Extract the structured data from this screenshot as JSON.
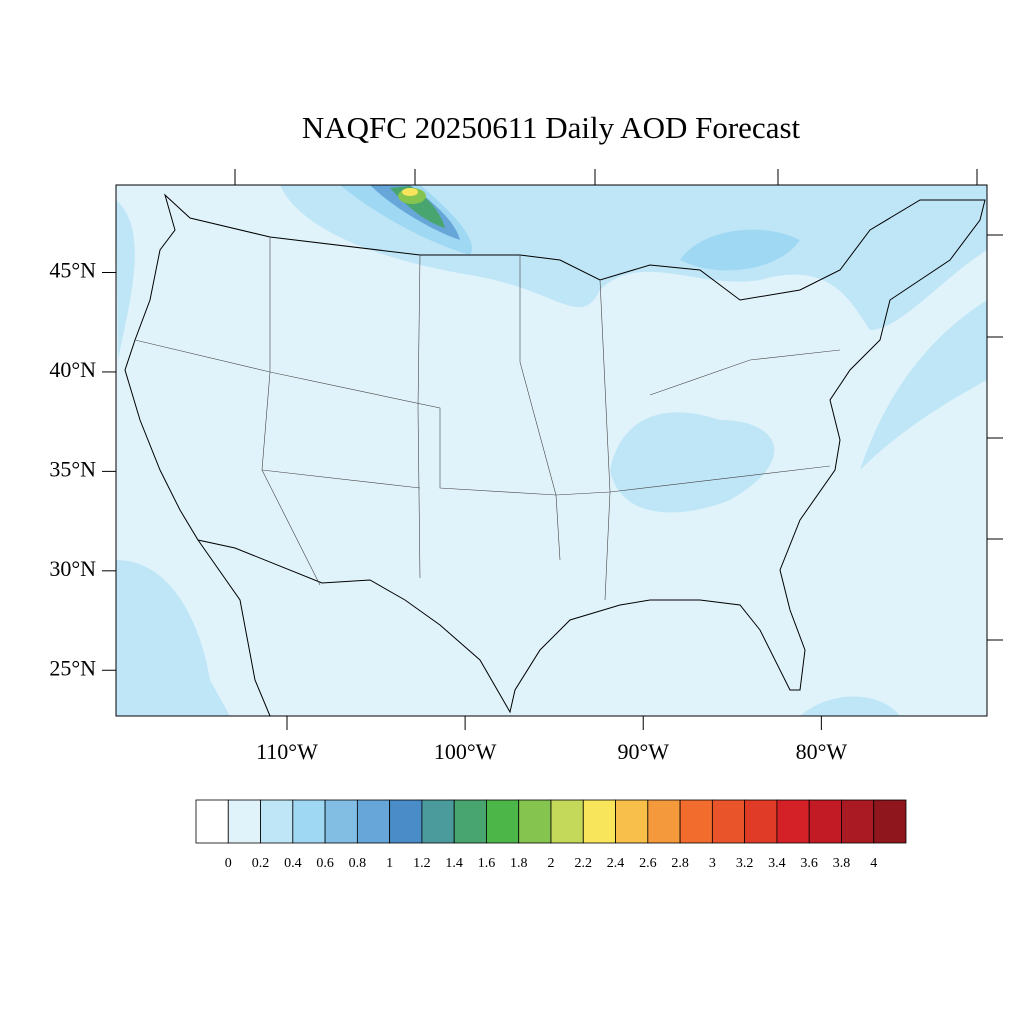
{
  "chart_data": {
    "type": "map",
    "title": "NAQFC 20250611 Daily AOD Forecast",
    "xlim": [
      -119.6,
      -70.7
    ],
    "ylim": [
      22.7,
      49.4
    ],
    "xticks": [
      {
        "value": -110,
        "label": "110°W"
      },
      {
        "value": -100,
        "label": "100°W"
      },
      {
        "value": -90,
        "label": "90°W"
      },
      {
        "value": -80,
        "label": "80°W"
      }
    ],
    "yticks": [
      {
        "value": 25,
        "label": "25°N"
      },
      {
        "value": 30,
        "label": "30°N"
      },
      {
        "value": 35,
        "label": "35°N"
      },
      {
        "value": 40,
        "label": "40°N"
      },
      {
        "value": 45,
        "label": "45°N"
      }
    ],
    "colorbar": {
      "levels": [
        0,
        0.2,
        0.4,
        0.6,
        0.8,
        1,
        1.2,
        1.4,
        1.6,
        1.8,
        2,
        2.2,
        2.4,
        2.6,
        2.8,
        3,
        3.2,
        3.4,
        3.6,
        3.8,
        4
      ],
      "colors": [
        "#ffffff",
        "#e0f3fb",
        "#bfe6f7",
        "#9fd8f3",
        "#82bde4",
        "#66a6d9",
        "#4a8cc8",
        "#4b9b9c",
        "#49a56f",
        "#4db648",
        "#86c450",
        "#c4d95a",
        "#f8e55b",
        "#f8c04a",
        "#f59a3c",
        "#f16c2d",
        "#ea542b",
        "#e03b27",
        "#d42128",
        "#c21b26",
        "#aa1a23",
        "#8f161d"
      ]
    }
  }
}
